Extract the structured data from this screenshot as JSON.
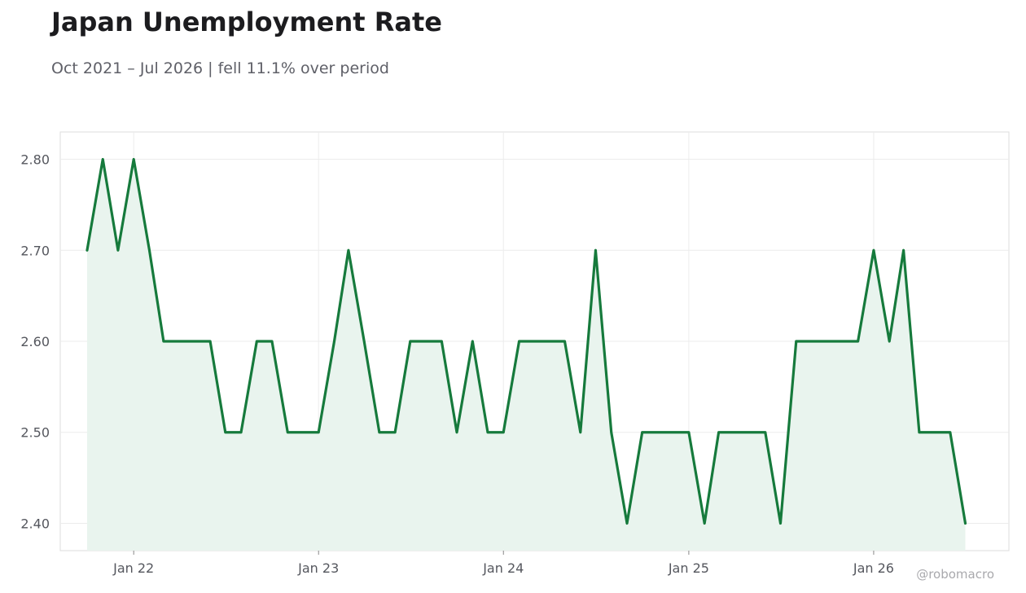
{
  "chart_data": {
    "type": "area",
    "title": "Japan Unemployment Rate",
    "subtitle": "Oct 2021 – Jul 2026 | fell 11.1% over period",
    "xlabel": "",
    "ylabel": "",
    "ylim": [
      2.37,
      2.83
    ],
    "yticks": [
      2.4,
      2.5,
      2.6,
      2.7,
      2.8
    ],
    "ytick_labels": [
      "2.40",
      "2.50",
      "2.60",
      "2.70",
      "2.80"
    ],
    "xlim": [
      "2021-08-09",
      "2026-09-25"
    ],
    "xticks": [
      "2022-01-01",
      "2023-01-01",
      "2024-01-01",
      "2025-01-01",
      "2026-01-01"
    ],
    "xtick_labels": [
      "Jan 22",
      "Jan 23",
      "Jan 24",
      "Jan 25",
      "Jan 26"
    ],
    "grid": true,
    "line_color": "#167a3c",
    "fill_color": "#e9f4ee",
    "watermark": "@robomacro",
    "series": [
      {
        "x": [
          "2021-10-01",
          "2021-11-01",
          "2021-12-01",
          "2022-01-01",
          "2022-02-01",
          "2022-03-01",
          "2022-04-01",
          "2022-05-01",
          "2022-06-01",
          "2022-07-01",
          "2022-08-01",
          "2022-09-01",
          "2022-10-01",
          "2022-11-01",
          "2022-12-01",
          "2023-01-01",
          "2023-02-01",
          "2023-03-01",
          "2023-04-01",
          "2023-05-01",
          "2023-06-01",
          "2023-07-01",
          "2023-08-01",
          "2023-09-01",
          "2023-10-01",
          "2023-11-01",
          "2023-12-01",
          "2024-01-01",
          "2024-02-01",
          "2024-03-01",
          "2024-04-01",
          "2024-05-01",
          "2024-06-01",
          "2024-07-01",
          "2024-08-01",
          "2024-09-01",
          "2024-10-01",
          "2024-11-01",
          "2024-12-01",
          "2025-01-01",
          "2025-02-01",
          "2025-03-01",
          "2025-04-01",
          "2025-05-01",
          "2025-06-01",
          "2025-07-01",
          "2025-08-01",
          "2025-09-01",
          "2025-10-01",
          "2025-11-01",
          "2025-12-01",
          "2026-01-01",
          "2026-02-01",
          "2026-03-01",
          "2026-04-01",
          "2026-05-01",
          "2026-06-01",
          "2026-07-01"
        ],
        "values": [
          2.7,
          2.8,
          2.7,
          2.8,
          2.7,
          2.6,
          2.6,
          2.6,
          2.6,
          2.5,
          2.5,
          2.6,
          2.6,
          2.5,
          2.5,
          2.5,
          2.6,
          2.7,
          2.6,
          2.5,
          2.5,
          2.6,
          2.6,
          2.6,
          2.5,
          2.6,
          2.5,
          2.5,
          2.6,
          2.6,
          2.6,
          2.6,
          2.5,
          2.7,
          2.5,
          2.4,
          2.5,
          2.5,
          2.5,
          2.5,
          2.4,
          2.5,
          2.5,
          2.5,
          2.5,
          2.4,
          2.6,
          2.6,
          2.6,
          2.6,
          2.6,
          2.7,
          2.6,
          2.7,
          2.5,
          2.5,
          2.5,
          2.4
        ]
      }
    ]
  }
}
